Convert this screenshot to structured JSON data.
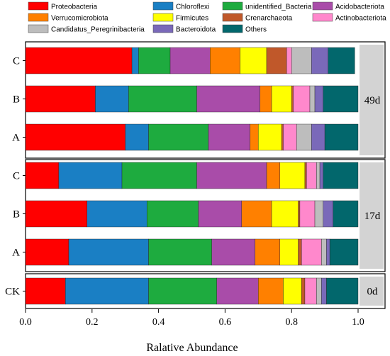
{
  "chart_data": {
    "type": "bar",
    "orientation": "horizontal",
    "stacked": true,
    "xlabel": "Ralative Abundance",
    "ylabel": "",
    "xlim": [
      0,
      1.0
    ],
    "xticks": [
      "0.0",
      "0.2",
      "0.4",
      "0.6",
      "0.8",
      "1.0"
    ],
    "legend_position": "top",
    "series": [
      {
        "name": "Proteobacteria",
        "color": "#ff0000"
      },
      {
        "name": "Chloroflexi",
        "color": "#1a7fc4"
      },
      {
        "name": "unidentified_Bacteria",
        "color": "#1eab3f"
      },
      {
        "name": "Acidobacteriota",
        "color": "#a94ca9"
      },
      {
        "name": "Verrucomicrobiota",
        "color": "#ff8000"
      },
      {
        "name": "Firmicutes",
        "color": "#ffff00"
      },
      {
        "name": "Crenarchaeota",
        "color": "#c0582a"
      },
      {
        "name": "Actinobacteriota",
        "color": "#ff88cc"
      },
      {
        "name": "Candidatus_Peregrinibacteria",
        "color": "#bdbdbd"
      },
      {
        "name": "Bacteroidota",
        "color": "#7a69b9"
      },
      {
        "name": "Others",
        "color": "#02676c"
      }
    ],
    "panels": [
      {
        "label": "49d",
        "bars": [
          {
            "category": "C",
            "values": [
              0.32,
              0.02,
              0.095,
              0.12,
              0.09,
              0.08,
              0.06,
              0.015,
              0.06,
              0.05,
              0.08
            ]
          },
          {
            "category": "B",
            "values": [
              0.21,
              0.1,
              0.205,
              0.19,
              0.035,
              0.06,
              0.005,
              0.05,
              0.015,
              0.025,
              0.105
            ]
          },
          {
            "category": "A",
            "values": [
              0.3,
              0.07,
              0.18,
              0.125,
              0.025,
              0.07,
              0.005,
              0.04,
              0.045,
              0.04,
              0.1
            ]
          }
        ]
      },
      {
        "label": "17d",
        "bars": [
          {
            "category": "C",
            "values": [
              0.1,
              0.19,
              0.225,
              0.21,
              0.04,
              0.075,
              0.005,
              0.03,
              0.01,
              0.01,
              0.105
            ]
          },
          {
            "category": "B",
            "values": [
              0.185,
              0.18,
              0.155,
              0.13,
              0.09,
              0.08,
              0.005,
              0.045,
              0.025,
              0.03,
              0.075
            ]
          },
          {
            "category": "A",
            "values": [
              0.13,
              0.24,
              0.19,
              0.13,
              0.075,
              0.055,
              0.01,
              0.06,
              0.015,
              0.01,
              0.085
            ]
          }
        ]
      },
      {
        "label": "0d",
        "bars": [
          {
            "category": "CK",
            "values": [
              0.12,
              0.25,
              0.205,
              0.125,
              0.075,
              0.055,
              0.01,
              0.035,
              0.015,
              0.015,
              0.095
            ]
          }
        ]
      }
    ]
  }
}
